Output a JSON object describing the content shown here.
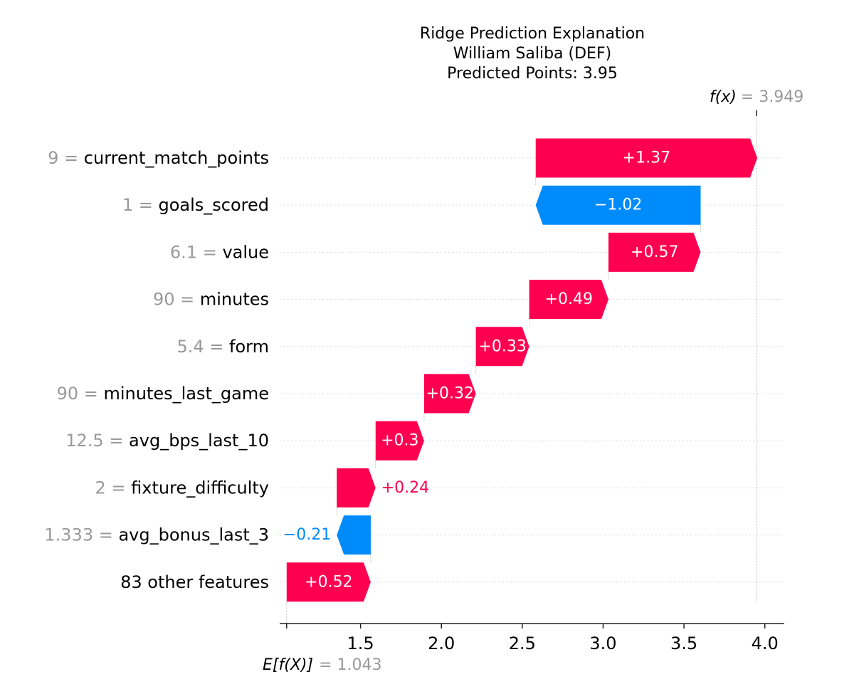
{
  "chart_data": {
    "type": "waterfall",
    "title_lines": [
      "Ridge Prediction Explanation",
      "William Saliba (DEF)",
      "Predicted Points: 3.95"
    ],
    "base_value": 1.043,
    "base_label": "E[f(X)]",
    "base_value_text": "= 1.043",
    "final_value": 3.949,
    "final_label": "f(x)",
    "final_value_text": "= 3.949",
    "xlim": [
      1.0,
      4.12
    ],
    "xticks": [
      1.5,
      2.0,
      2.5,
      3.0,
      3.5,
      4.0
    ],
    "xtick_labels": [
      "1.5",
      "2.0",
      "2.5",
      "3.0",
      "3.5",
      "4.0"
    ],
    "features": [
      {
        "value_text": "9",
        "name": "current_match_points",
        "contribution": 1.37,
        "label": "+1.37"
      },
      {
        "value_text": "1",
        "name": "goals_scored",
        "contribution": -1.02,
        "label": "−1.02"
      },
      {
        "value_text": "6.1",
        "name": "value",
        "contribution": 0.57,
        "label": "+0.57"
      },
      {
        "value_text": "90",
        "name": "minutes",
        "contribution": 0.49,
        "label": "+0.49"
      },
      {
        "value_text": "5.4",
        "name": "form",
        "contribution": 0.33,
        "label": "+0.33"
      },
      {
        "value_text": "90",
        "name": "minutes_last_game",
        "contribution": 0.32,
        "label": "+0.32"
      },
      {
        "value_text": "12.5",
        "name": "avg_bps_last_10",
        "contribution": 0.3,
        "label": "+0.3"
      },
      {
        "value_text": "2",
        "name": "fixture_difficulty",
        "contribution": 0.24,
        "label": "+0.24"
      },
      {
        "value_text": "1.333",
        "name": "avg_bonus_last_3",
        "contribution": -0.21,
        "label": "−0.21"
      },
      {
        "value_text": "",
        "name": "83 other features",
        "contribution": 0.52,
        "label": "+0.52"
      }
    ],
    "colors": {
      "positive": "#ff0051",
      "negative": "#008bfb",
      "muted": "#999999",
      "text": "#000000",
      "grid": "#cccccc"
    }
  }
}
